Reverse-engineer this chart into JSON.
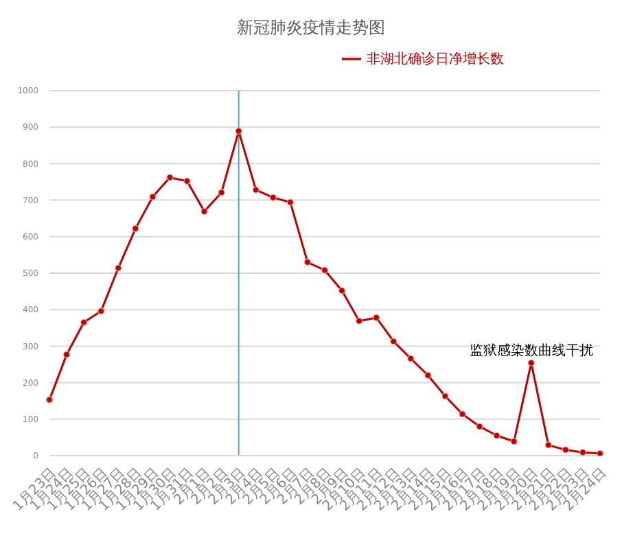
{
  "chart_data": {
    "type": "line",
    "title": "新冠肺炎疫情走势图",
    "categories": [
      "1月23日",
      "1月24日",
      "1月25日",
      "1月26日",
      "1月27日",
      "1月28日",
      "1月29日",
      "1月30日",
      "1月31日",
      "2月1日",
      "2月2日",
      "2月3日",
      "2月4日",
      "2月5日",
      "2月6日",
      "2月7日",
      "2月8日",
      "2月9日",
      "2月10日",
      "2月11日",
      "2月12日",
      "2月13日",
      "2月14日",
      "2月15日",
      "2月16日",
      "2月17日",
      "2月18日",
      "2月19日",
      "2月20日",
      "2月21日",
      "2月22日",
      "2月23日",
      "2月24日"
    ],
    "series": [
      {
        "name": "非湖北确诊日净增长数",
        "color": "#c00000",
        "values": [
          153,
          277,
          365,
          396,
          514,
          622,
          709,
          762,
          752,
          669,
          721,
          889,
          728,
          707,
          694,
          530,
          508,
          452,
          369,
          378,
          313,
          266,
          220,
          163,
          114,
          80,
          55,
          39,
          254,
          29,
          16,
          9,
          6
        ]
      }
    ],
    "ylim": [
      0,
      1000
    ],
    "yticks": [
      0,
      100,
      200,
      300,
      400,
      500,
      600,
      700,
      800,
      900,
      1000
    ],
    "grid": "y",
    "legend": "top right",
    "marker": "circle",
    "line_style": "solid",
    "ref_lines": [
      {
        "axis": "x",
        "value": "2月3日",
        "color": "#4bacc6"
      }
    ],
    "annotations": [
      {
        "text": "监狱感染数曲线干扰",
        "x": "2月20日",
        "y": 254
      }
    ]
  }
}
